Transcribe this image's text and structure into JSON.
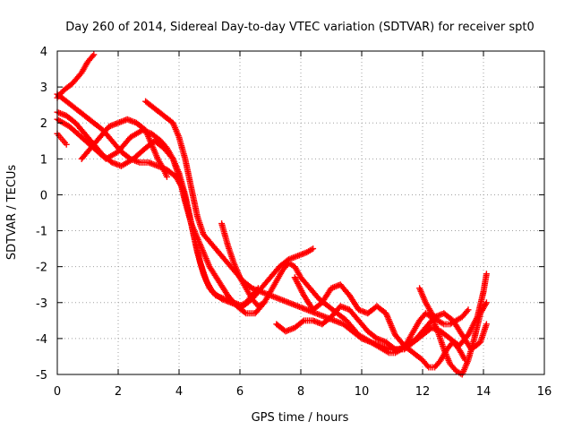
{
  "chart_data": {
    "type": "scatter",
    "title": "Day 260 of 2014, Sidereal Day-to-day VTEC variation (SDTVAR) for receiver spt0",
    "xlabel": "GPS time / hours",
    "ylabel": "SDTVAR / TECUs",
    "xlim": [
      0,
      16
    ],
    "ylim": [
      -5,
      4
    ],
    "xticks": [
      0,
      2,
      4,
      6,
      8,
      10,
      12,
      14,
      16
    ],
    "yticks": [
      -5,
      -4,
      -3,
      -2,
      -1,
      0,
      1,
      2,
      3,
      4
    ],
    "grid": true,
    "marker": "+",
    "color": "#ff0000",
    "series": [
      {
        "x": [
          0.0,
          0.2,
          0.5,
          0.8,
          1.0,
          1.2
        ],
        "y": [
          2.7,
          2.9,
          3.1,
          3.4,
          3.7,
          3.9
        ]
      },
      {
        "x": [
          0.0,
          0.1,
          0.2,
          0.3
        ],
        "y": [
          1.7,
          1.6,
          1.5,
          1.4
        ]
      },
      {
        "x": [
          0.0,
          0.3,
          0.6,
          0.9,
          1.2,
          1.5,
          1.8,
          2.1,
          2.4,
          2.7,
          3.0,
          3.3,
          3.6,
          3.9,
          4.1,
          4.3,
          4.5,
          4.7,
          4.9,
          5.1,
          5.4,
          5.7,
          6.0,
          6.2,
          6.4,
          6.6
        ],
        "y": [
          2.8,
          2.6,
          2.4,
          2.2,
          2.0,
          1.8,
          1.5,
          1.2,
          1.0,
          0.9,
          0.9,
          0.8,
          0.7,
          0.5,
          0.2,
          -0.4,
          -1.2,
          -1.9,
          -2.4,
          -2.7,
          -2.9,
          -3.0,
          -3.1,
          -3.0,
          -2.8,
          -2.6
        ]
      },
      {
        "x": [
          0.0,
          0.3,
          0.6,
          0.9,
          1.2,
          1.5,
          1.8,
          2.1,
          2.5,
          2.9,
          3.2,
          3.5,
          3.8,
          4.0,
          4.2,
          4.4,
          4.6,
          4.8,
          5.0,
          5.2,
          5.5,
          5.8,
          6.1,
          6.4,
          6.7,
          7.0,
          7.3,
          7.6,
          7.9,
          8.2,
          8.4
        ],
        "y": [
          2.3,
          2.2,
          2.0,
          1.7,
          1.4,
          1.1,
          0.9,
          0.8,
          1.0,
          1.3,
          1.5,
          1.3,
          1.0,
          0.6,
          0.0,
          -0.8,
          -1.6,
          -2.2,
          -2.6,
          -2.8,
          -2.9,
          -3.0,
          -3.1,
          -2.9,
          -2.6,
          -2.3,
          -2.0,
          -1.8,
          -1.7,
          -1.6,
          -1.5
        ]
      },
      {
        "x": [
          0.0,
          0.4,
          0.8,
          1.2,
          1.6,
          2.0,
          2.4,
          2.8,
          3.1,
          3.4,
          3.6,
          3.8,
          4.0,
          4.2,
          4.4,
          4.6,
          4.8,
          5.0,
          5.3,
          5.6,
          5.9,
          6.2,
          6.5,
          6.8
        ],
        "y": [
          2.1,
          1.9,
          1.6,
          1.3,
          1.0,
          1.2,
          1.6,
          1.8,
          1.7,
          1.5,
          1.3,
          1.0,
          0.5,
          -0.2,
          -0.8,
          -1.2,
          -1.6,
          -2.0,
          -2.4,
          -2.8,
          -3.1,
          -3.3,
          -3.3,
          -3.0
        ]
      },
      {
        "x": [
          0.8,
          1.1,
          1.4,
          1.7,
          2.0,
          2.3,
          2.6,
          2.9,
          3.1,
          3.3,
          3.5,
          3.6
        ],
        "y": [
          1.0,
          1.3,
          1.6,
          1.9,
          2.0,
          2.1,
          2.0,
          1.8,
          1.4,
          1.0,
          0.7,
          0.5
        ]
      },
      {
        "x": [
          2.9,
          3.2,
          3.5,
          3.8,
          4.0,
          4.2,
          4.4,
          4.6,
          4.8,
          5.0,
          5.2,
          5.5,
          5.8,
          6.1,
          6.4,
          6.7,
          7.0,
          7.3,
          7.6,
          7.9,
          8.2,
          8.5,
          8.8,
          9.1,
          9.4,
          9.7,
          10.0,
          10.3,
          10.6,
          10.9,
          11.2,
          11.5,
          11.8,
          12.1,
          12.4,
          12.7,
          13.0,
          13.3,
          13.6,
          13.9,
          14.1
        ],
        "y": [
          2.6,
          2.4,
          2.2,
          2.0,
          1.6,
          1.0,
          0.2,
          -0.6,
          -1.1,
          -1.3,
          -1.5,
          -1.8,
          -2.1,
          -2.4,
          -2.6,
          -2.7,
          -2.8,
          -2.9,
          -3.0,
          -3.1,
          -3.2,
          -3.3,
          -3.4,
          -3.5,
          -3.6,
          -3.8,
          -4.0,
          -4.1,
          -4.2,
          -4.3,
          -4.3,
          -4.2,
          -4.0,
          -3.7,
          -3.4,
          -3.3,
          -3.5,
          -3.9,
          -4.3,
          -4.1,
          -3.6
        ]
      },
      {
        "x": [
          5.4,
          5.6,
          5.8,
          6.0,
          6.2,
          6.4,
          6.6,
          6.8,
          7.0,
          7.2,
          7.4,
          7.6,
          7.8,
          8.0,
          8.3,
          8.6,
          8.9,
          9.2,
          9.5,
          9.7,
          9.9,
          10.1,
          10.3,
          10.5,
          10.7,
          10.9,
          11.1,
          11.3,
          11.5,
          11.7,
          11.9,
          12.1,
          12.3,
          12.5,
          12.7,
          12.9,
          13.1,
          13.3,
          13.5,
          13.7,
          13.9,
          14.1
        ],
        "y": [
          -0.8,
          -1.4,
          -1.9,
          -2.3,
          -2.6,
          -2.9,
          -3.1,
          -3.0,
          -2.7,
          -2.4,
          -2.1,
          -1.9,
          -2.0,
          -2.3,
          -2.6,
          -2.9,
          -3.1,
          -3.3,
          -3.5,
          -3.7,
          -3.9,
          -4.0,
          -4.1,
          -4.2,
          -4.3,
          -4.4,
          -4.4,
          -4.3,
          -4.1,
          -3.8,
          -3.5,
          -3.3,
          -3.4,
          -3.8,
          -4.3,
          -4.7,
          -4.9,
          -5.0,
          -4.6,
          -4.0,
          -3.3,
          -3.0
        ]
      },
      {
        "x": [
          7.2,
          7.5,
          7.8,
          8.1,
          8.4,
          8.7,
          9.0,
          9.3,
          9.6,
          9.9,
          10.2,
          10.5,
          10.8,
          11.1,
          11.4,
          11.7,
          12.0,
          12.3,
          12.6,
          12.9,
          13.2,
          13.5,
          13.8,
          14.0,
          14.1
        ],
        "y": [
          -3.6,
          -3.8,
          -3.7,
          -3.5,
          -3.5,
          -3.6,
          -3.4,
          -3.1,
          -3.2,
          -3.5,
          -3.8,
          -4.0,
          -4.1,
          -4.3,
          -4.3,
          -4.1,
          -3.9,
          -3.7,
          -3.8,
          -4.0,
          -4.2,
          -3.9,
          -3.4,
          -2.7,
          -2.2
        ]
      },
      {
        "x": [
          7.8,
          8.1,
          8.4,
          8.7,
          9.0,
          9.3,
          9.6,
          9.9,
          10.2,
          10.5,
          10.8,
          11.1,
          11.4,
          11.7,
          12.0,
          12.2,
          12.4,
          12.6,
          12.8,
          13.0,
          13.2,
          13.4
        ],
        "y": [
          -2.3,
          -2.8,
          -3.2,
          -3.0,
          -2.6,
          -2.5,
          -2.8,
          -3.2,
          -3.3,
          -3.1,
          -3.3,
          -3.9,
          -4.2,
          -4.4,
          -4.6,
          -4.8,
          -4.8,
          -4.6,
          -4.3,
          -4.1,
          -4.3,
          -4.6
        ]
      },
      {
        "x": [
          11.9,
          12.1,
          12.3,
          12.5,
          12.7,
          12.9,
          13.1,
          13.3,
          13.5
        ],
        "y": [
          -2.6,
          -3.0,
          -3.3,
          -3.5,
          -3.6,
          -3.6,
          -3.5,
          -3.4,
          -3.2
        ]
      }
    ]
  }
}
